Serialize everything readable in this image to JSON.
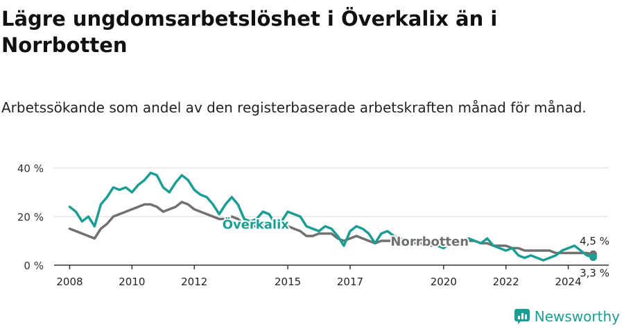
{
  "title": "Lägre ungdomsarbetslöshet i Överkalix än i Norrbotten",
  "subtitle": "Arbetssökande som andel av den registerbaserade arbetskraften månad för månad.",
  "brand": "Newsworthy",
  "colors": {
    "overkalix": "#1a9e93",
    "norrbotten": "#707070",
    "grid": "#d9d9d9",
    "axis": "#333333"
  },
  "chart_data": {
    "type": "line",
    "x_ticks": [
      2008,
      2010,
      2012,
      2015,
      2017,
      2020,
      2022,
      2024
    ],
    "y_ticks": [
      0,
      20,
      40
    ],
    "y_tick_labels": [
      "0 %",
      "20 %",
      "40 %"
    ],
    "xlim": [
      2007.5,
      2025.3
    ],
    "ylim": [
      0,
      40
    ],
    "series": [
      {
        "name": "Överkalix",
        "color": "#1a9e93",
        "end_label": "3,3 %",
        "points": [
          [
            2008.0,
            24
          ],
          [
            2008.2,
            22
          ],
          [
            2008.4,
            18
          ],
          [
            2008.6,
            20
          ],
          [
            2008.8,
            16
          ],
          [
            2009.0,
            25
          ],
          [
            2009.2,
            28
          ],
          [
            2009.4,
            32
          ],
          [
            2009.6,
            31
          ],
          [
            2009.8,
            32
          ],
          [
            2010.0,
            30
          ],
          [
            2010.2,
            33
          ],
          [
            2010.4,
            35
          ],
          [
            2010.6,
            38
          ],
          [
            2010.8,
            37
          ],
          [
            2011.0,
            32
          ],
          [
            2011.2,
            30
          ],
          [
            2011.4,
            34
          ],
          [
            2011.6,
            37
          ],
          [
            2011.8,
            35
          ],
          [
            2012.0,
            31
          ],
          [
            2012.2,
            29
          ],
          [
            2012.4,
            28
          ],
          [
            2012.6,
            25
          ],
          [
            2012.8,
            21
          ],
          [
            2013.0,
            25
          ],
          [
            2013.2,
            28
          ],
          [
            2013.4,
            25
          ],
          [
            2013.6,
            19
          ],
          [
            2013.8,
            18
          ],
          [
            2014.0,
            19
          ],
          [
            2014.2,
            22
          ],
          [
            2014.4,
            21
          ],
          [
            2014.6,
            17
          ],
          [
            2014.8,
            18
          ],
          [
            2015.0,
            22
          ],
          [
            2015.2,
            21
          ],
          [
            2015.4,
            20
          ],
          [
            2015.6,
            16
          ],
          [
            2015.8,
            15
          ],
          [
            2016.0,
            14
          ],
          [
            2016.2,
            16
          ],
          [
            2016.4,
            15
          ],
          [
            2016.6,
            12
          ],
          [
            2016.8,
            8
          ],
          [
            2017.0,
            14
          ],
          [
            2017.2,
            16
          ],
          [
            2017.4,
            15
          ],
          [
            2017.6,
            13
          ],
          [
            2017.8,
            9
          ],
          [
            2018.0,
            13
          ],
          [
            2018.2,
            14
          ],
          [
            2018.4,
            12
          ],
          [
            2018.6,
            11
          ],
          [
            2018.8,
            10
          ],
          [
            2019.0,
            9
          ],
          [
            2019.2,
            11
          ],
          [
            2019.4,
            10
          ],
          [
            2019.6,
            9
          ],
          [
            2019.8,
            8
          ],
          [
            2020.0,
            7
          ],
          [
            2020.2,
            9
          ],
          [
            2020.4,
            10
          ],
          [
            2020.6,
            8
          ],
          [
            2020.8,
            11
          ],
          [
            2021.0,
            10
          ],
          [
            2021.2,
            9
          ],
          [
            2021.4,
            11
          ],
          [
            2021.6,
            8
          ],
          [
            2021.8,
            7
          ],
          [
            2022.0,
            6
          ],
          [
            2022.2,
            7
          ],
          [
            2022.4,
            4
          ],
          [
            2022.6,
            3
          ],
          [
            2022.8,
            4
          ],
          [
            2023.0,
            3
          ],
          [
            2023.2,
            2
          ],
          [
            2023.4,
            3
          ],
          [
            2023.6,
            4
          ],
          [
            2023.8,
            6
          ],
          [
            2024.0,
            7
          ],
          [
            2024.2,
            8
          ],
          [
            2024.4,
            6
          ],
          [
            2024.6,
            4
          ],
          [
            2024.8,
            3.3
          ]
        ]
      },
      {
        "name": "Norrbotten",
        "color": "#707070",
        "end_label": "4,5 %",
        "points": [
          [
            2008.0,
            15
          ],
          [
            2008.2,
            14
          ],
          [
            2008.4,
            13
          ],
          [
            2008.6,
            12
          ],
          [
            2008.8,
            11
          ],
          [
            2009.0,
            15
          ],
          [
            2009.2,
            17
          ],
          [
            2009.4,
            20
          ],
          [
            2009.6,
            21
          ],
          [
            2009.8,
            22
          ],
          [
            2010.0,
            23
          ],
          [
            2010.2,
            24
          ],
          [
            2010.4,
            25
          ],
          [
            2010.6,
            25
          ],
          [
            2010.8,
            24
          ],
          [
            2011.0,
            22
          ],
          [
            2011.2,
            23
          ],
          [
            2011.4,
            24
          ],
          [
            2011.6,
            26
          ],
          [
            2011.8,
            25
          ],
          [
            2012.0,
            23
          ],
          [
            2012.2,
            22
          ],
          [
            2012.4,
            21
          ],
          [
            2012.6,
            20
          ],
          [
            2012.8,
            19
          ],
          [
            2013.0,
            19
          ],
          [
            2013.2,
            20
          ],
          [
            2013.4,
            19
          ],
          [
            2013.6,
            17
          ],
          [
            2013.8,
            16
          ],
          [
            2014.0,
            16
          ],
          [
            2014.2,
            17
          ],
          [
            2014.4,
            16
          ],
          [
            2014.6,
            15
          ],
          [
            2014.8,
            15
          ],
          [
            2015.0,
            16
          ],
          [
            2015.2,
            15
          ],
          [
            2015.4,
            14
          ],
          [
            2015.6,
            12
          ],
          [
            2015.8,
            12
          ],
          [
            2016.0,
            13
          ],
          [
            2016.2,
            13
          ],
          [
            2016.4,
            13
          ],
          [
            2016.6,
            11
          ],
          [
            2016.8,
            10
          ],
          [
            2017.0,
            11
          ],
          [
            2017.2,
            12
          ],
          [
            2017.4,
            11
          ],
          [
            2017.6,
            10
          ],
          [
            2017.8,
            9
          ],
          [
            2018.0,
            10
          ],
          [
            2018.2,
            10
          ],
          [
            2018.4,
            10
          ],
          [
            2018.6,
            9
          ],
          [
            2018.8,
            9
          ],
          [
            2019.0,
            9
          ],
          [
            2019.2,
            9
          ],
          [
            2019.4,
            9
          ],
          [
            2019.6,
            8
          ],
          [
            2019.8,
            8
          ],
          [
            2020.0,
            8
          ],
          [
            2020.2,
            9
          ],
          [
            2020.4,
            10
          ],
          [
            2020.6,
            10
          ],
          [
            2020.8,
            10
          ],
          [
            2021.0,
            10
          ],
          [
            2021.2,
            9
          ],
          [
            2021.4,
            9
          ],
          [
            2021.6,
            8
          ],
          [
            2021.8,
            8
          ],
          [
            2022.0,
            8
          ],
          [
            2022.2,
            7
          ],
          [
            2022.4,
            7
          ],
          [
            2022.6,
            6
          ],
          [
            2022.8,
            6
          ],
          [
            2023.0,
            6
          ],
          [
            2023.2,
            6
          ],
          [
            2023.4,
            6
          ],
          [
            2023.6,
            5
          ],
          [
            2023.8,
            5
          ],
          [
            2024.0,
            5
          ],
          [
            2024.2,
            5
          ],
          [
            2024.4,
            5
          ],
          [
            2024.6,
            5
          ],
          [
            2024.8,
            4.5
          ]
        ]
      }
    ]
  }
}
